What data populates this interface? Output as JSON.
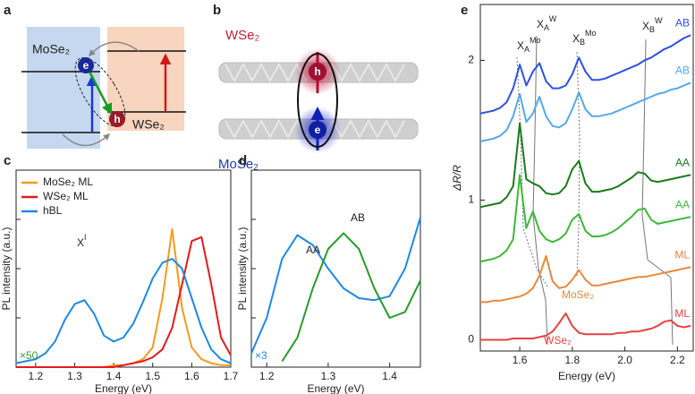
{
  "panels": {
    "a": {
      "letter": "a",
      "mose2": "MoSe₂",
      "wse2": "WSe₂",
      "electron": "e",
      "hole": "h"
    },
    "b": {
      "letter": "b",
      "wse2": "WSe₂",
      "mose2": "MoSe₂",
      "hole": "h",
      "electron": "e"
    }
  },
  "chart_data": [
    {
      "letter": "c",
      "type": "line",
      "x_label": "Energy (eV)",
      "y_label": "PL intensity (a.u.)",
      "xlim": [
        1.15,
        1.7
      ],
      "xticks": [
        1.2,
        1.3,
        1.4,
        1.5,
        1.6,
        1.7
      ],
      "ylim": [
        0,
        1
      ],
      "legend": "upper left",
      "x": [
        1.15,
        1.175,
        1.2,
        1.225,
        1.25,
        1.275,
        1.3,
        1.325,
        1.35,
        1.375,
        1.4,
        1.425,
        1.45,
        1.475,
        1.5,
        1.525,
        1.55,
        1.575,
        1.6,
        1.625,
        1.65,
        1.675,
        1.7
      ],
      "series": [
        {
          "name": "MoSe₂ ML",
          "color": "#f39a1f",
          "values": [
            0,
            0,
            0,
            0,
            0,
            0,
            0,
            0,
            0,
            0,
            0.01,
            0.01,
            0.02,
            0.04,
            0.1,
            0.35,
            0.7,
            0.3,
            0.1,
            0.04,
            0.02,
            0.01,
            0.01
          ]
        },
        {
          "name": "WSe₂ ML",
          "color": "#e31a1c",
          "values": [
            0,
            0,
            0,
            0,
            0,
            0,
            0,
            0,
            0,
            0,
            0,
            0.01,
            0.02,
            0.03,
            0.05,
            0.09,
            0.2,
            0.42,
            0.64,
            0.66,
            0.42,
            0.15,
            0.06
          ]
        },
        {
          "name": "hBL",
          "color": "#1f88e5",
          "values": [
            0.02,
            0.03,
            0.04,
            0.07,
            0.13,
            0.24,
            0.32,
            0.34,
            0.27,
            0.16,
            0.13,
            0.15,
            0.22,
            0.33,
            0.45,
            0.53,
            0.55,
            0.5,
            0.35,
            0.2,
            0.09,
            0.04,
            0.02
          ]
        }
      ],
      "annotations": [
        {
          "text": "X",
          "sup": "I",
          "color": "#222222"
        },
        {
          "text": "×50",
          "color": "#3a9a3a"
        }
      ]
    },
    {
      "letter": "d",
      "type": "line",
      "x_label": "Energy (eV)",
      "y_label": "PL intensity (a.u.)",
      "xlim": [
        1.175,
        1.45
      ],
      "xticks": [
        1.2,
        1.3,
        1.4
      ],
      "ylim": [
        0,
        1
      ],
      "x": [
        1.175,
        1.2,
        1.225,
        1.25,
        1.275,
        1.3,
        1.325,
        1.35,
        1.375,
        1.4,
        1.425,
        1.45
      ],
      "series": [
        {
          "color": "#1f88e5",
          "values": [
            0.07,
            0.25,
            0.55,
            0.67,
            0.62,
            0.5,
            0.4,
            0.35,
            0.34,
            0.36,
            0.5,
            0.76
          ]
        },
        {
          "color": "#2a9a2a",
          "values": [
            null,
            null,
            0.03,
            0.15,
            0.4,
            0.6,
            0.68,
            0.6,
            0.4,
            0.25,
            0.28,
            0.44
          ]
        }
      ],
      "annotations": [
        {
          "text": "AA",
          "color": "#222222"
        },
        {
          "text": "AB",
          "color": "#222222"
        },
        {
          "text": "×3",
          "color": "#1f88e5"
        }
      ]
    },
    {
      "letter": "e",
      "type": "line",
      "x_label": "Energy (eV)",
      "y_label": "ΔR/R",
      "xlim": [
        1.45,
        2.26
      ],
      "xticks": [
        1.6,
        1.8,
        {
          "value": 2,
          "label": "2.0"
        },
        2.2
      ],
      "ylim": [
        -0.08,
        2.4
      ],
      "yticks": [
        0,
        1,
        2
      ],
      "x": [
        1.45,
        1.475,
        1.5,
        1.525,
        1.55,
        1.575,
        1.6,
        1.625,
        1.65,
        1.675,
        1.7,
        1.725,
        1.75,
        1.775,
        1.8,
        1.825,
        1.85,
        1.875,
        1.9,
        1.925,
        1.95,
        1.975,
        2.0,
        2.025,
        2.05,
        2.075,
        2.1,
        2.125,
        2.15,
        2.175,
        2.2,
        2.225,
        2.25
      ],
      "series": [
        {
          "name": "AB",
          "color": "#3050e0",
          "values": [
            1.62,
            1.63,
            1.64,
            1.66,
            1.7,
            1.8,
            1.97,
            1.82,
            1.92,
            1.98,
            1.85,
            1.8,
            1.8,
            1.82,
            1.9,
            2.02,
            1.92,
            1.86,
            1.86,
            1.87,
            1.89,
            1.91,
            1.93,
            1.95,
            1.97,
            2.0,
            2.02,
            2.05,
            2.08,
            2.1,
            2.13,
            2.16,
            2.18
          ]
        },
        {
          "name": "AB",
          "color": "#55a8e8",
          "values": [
            1.42,
            1.43,
            1.44,
            1.46,
            1.5,
            1.6,
            1.76,
            1.56,
            1.62,
            1.74,
            1.6,
            1.53,
            1.52,
            1.55,
            1.65,
            1.77,
            1.65,
            1.6,
            1.6,
            1.61,
            1.62,
            1.64,
            1.66,
            1.68,
            1.7,
            1.72,
            1.74,
            1.76,
            1.77,
            1.79,
            1.8,
            1.82,
            1.84
          ]
        },
        {
          "name": "AA",
          "color": "#1a7a1a",
          "values": [
            0.95,
            0.96,
            0.97,
            0.98,
            1.02,
            1.1,
            1.55,
            1.15,
            1.12,
            1.1,
            1.05,
            1.04,
            1.05,
            1.1,
            1.22,
            1.28,
            1.12,
            1.06,
            1.06,
            1.07,
            1.08,
            1.1,
            1.13,
            1.16,
            1.2,
            1.19,
            1.14,
            1.13,
            1.14,
            1.15,
            1.16,
            1.17,
            1.18
          ]
        },
        {
          "name": "AA",
          "color": "#3cb83c",
          "values": [
            0.56,
            0.57,
            0.58,
            0.6,
            0.64,
            0.72,
            1.18,
            0.8,
            0.92,
            0.78,
            0.72,
            0.7,
            0.72,
            0.76,
            0.86,
            0.9,
            0.78,
            0.74,
            0.74,
            0.75,
            0.77,
            0.8,
            0.84,
            0.88,
            0.93,
            0.94,
            0.86,
            0.83,
            0.84,
            0.85,
            0.86,
            0.87,
            0.88
          ]
        },
        {
          "name": "ML",
          "color": "#e8883a",
          "values": [
            0.27,
            0.27,
            0.28,
            0.28,
            0.29,
            0.3,
            0.31,
            0.33,
            0.37,
            0.46,
            0.6,
            0.42,
            0.37,
            0.38,
            0.43,
            0.5,
            0.43,
            0.39,
            0.39,
            0.4,
            0.41,
            0.42,
            0.43,
            0.44,
            0.45,
            0.45,
            0.46,
            0.47,
            0.48,
            0.49,
            0.5,
            0.51,
            0.52
          ]
        },
        {
          "name": "ML",
          "color": "#e84040",
          "values": [
            0,
            0,
            0,
            0,
            0,
            0.01,
            0.01,
            0.01,
            0.01,
            0.02,
            0.03,
            0.06,
            0.12,
            0.19,
            0.1,
            0.05,
            0.04,
            0.04,
            0.04,
            0.04,
            0.04,
            0.05,
            0.05,
            0.06,
            0.06,
            0.07,
            0.08,
            0.1,
            0.13,
            0.14,
            0.1,
            0.09,
            0.1
          ]
        }
      ],
      "annotations": [
        {
          "text": "MoSe₂",
          "color": "#e8883a"
        },
        {
          "text": "WSe₂",
          "color": "#e84040"
        }
      ],
      "peak_labels": [
        {
          "text": "X",
          "sub": "A",
          "sup": "Mo"
        },
        {
          "text": "X",
          "sub": "A",
          "sup": "W"
        },
        {
          "text": "X",
          "sub": "B",
          "sup": "Mo"
        },
        {
          "text": "X",
          "sub": "B",
          "sup": "W"
        }
      ]
    }
  ]
}
